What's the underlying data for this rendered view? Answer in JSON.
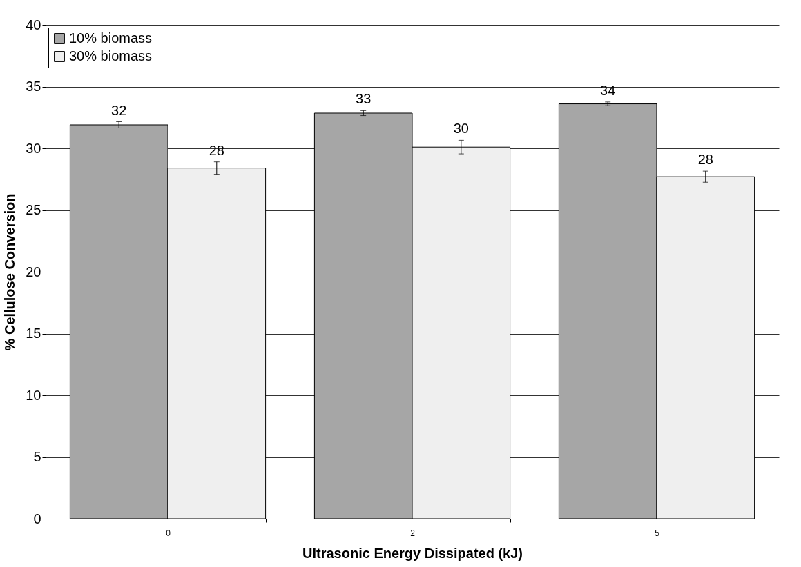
{
  "chart_data": {
    "type": "bar",
    "xlabel": "Ultrasonic Energy Dissipated (kJ)",
    "ylabel": "% Cellulose Conversion",
    "categories": [
      "0",
      "2",
      "5"
    ],
    "series": [
      {
        "name": "10% biomass",
        "color": "#a6a6a6",
        "values": [
          31.9,
          32.85,
          33.6
        ],
        "errors": [
          0.25,
          0.2,
          0.15
        ],
        "value_labels": [
          "32",
          "33",
          "34"
        ]
      },
      {
        "name": "30% biomass",
        "color": "#efefef",
        "values": [
          28.4,
          30.1,
          27.7
        ],
        "errors": [
          0.5,
          0.55,
          0.45
        ],
        "value_labels": [
          "28",
          "30",
          "28"
        ]
      }
    ],
    "ylim": [
      0,
      40
    ],
    "yticks": [
      0,
      5,
      10,
      15,
      20,
      25,
      30,
      35,
      40
    ],
    "grid": "y",
    "legend": "top left"
  }
}
